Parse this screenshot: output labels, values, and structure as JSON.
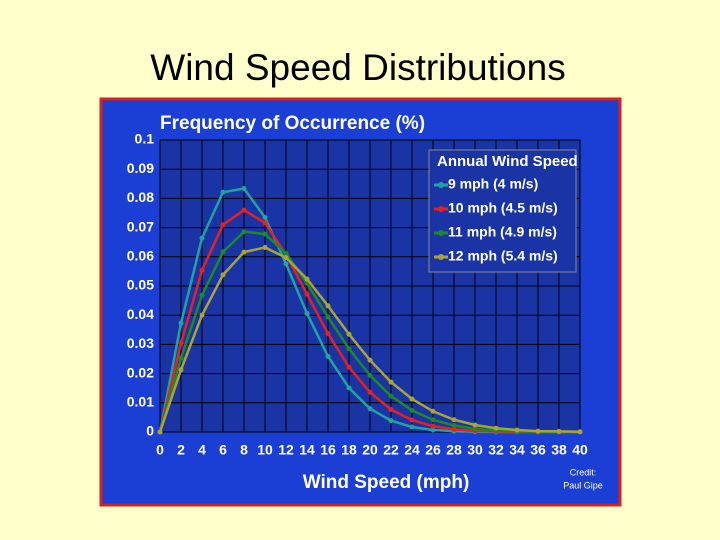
{
  "slide_title": "Wind Speed Distributions",
  "chart_data": {
    "type": "line",
    "title": "Frequency of Occurrence (%)",
    "x_label": "Wind Speed (mph)",
    "legend_title": "Annual Wind Speed",
    "legend_position": "upper right",
    "credit": [
      "Credit:",
      "Paul Gipe"
    ],
    "grid": true,
    "x": [
      0,
      2,
      4,
      6,
      8,
      10,
      12,
      14,
      16,
      18,
      20,
      22,
      24,
      26,
      28,
      30,
      32,
      34,
      36,
      38,
      40
    ],
    "series": [
      {
        "name": "9 mph (4 m/s)",
        "color": "#1fa3a3",
        "values": [
          0,
          0.0373,
          0.0664,
          0.0821,
          0.0834,
          0.0735,
          0.0576,
          0.0406,
          0.0259,
          0.0151,
          0.008,
          0.0039,
          0.0017,
          0.0007,
          0.0003,
          0.0001,
          0,
          0,
          0,
          0,
          0
        ]
      },
      {
        "name": "10 mph (4.5 m/s)",
        "color": "#e8201e",
        "values": [
          0,
          0.0304,
          0.0554,
          0.071,
          0.076,
          0.0716,
          0.0608,
          0.0472,
          0.0337,
          0.0222,
          0.0136,
          0.0077,
          0.0041,
          0.002,
          0.0009,
          0.0004,
          0.0002,
          0.0001,
          0,
          0,
          0
        ]
      },
      {
        "name": "11 mph (4.9 m/s)",
        "color": "#1f8a24",
        "values": [
          0,
          0.0253,
          0.0468,
          0.0617,
          0.0686,
          0.0678,
          0.0612,
          0.0509,
          0.0394,
          0.0285,
          0.0194,
          0.0123,
          0.0074,
          0.0042,
          0.0022,
          0.0011,
          0.0005,
          0.0002,
          0.0001,
          0,
          0
        ]
      },
      {
        "name": "12 mph (5.4 m/s)",
        "color": "#a9a535",
        "values": [
          0,
          0.0213,
          0.04,
          0.0538,
          0.0616,
          0.0632,
          0.0597,
          0.0524,
          0.0432,
          0.0335,
          0.0246,
          0.0171,
          0.0113,
          0.0071,
          0.0042,
          0.0024,
          0.0013,
          0.0007,
          0.0003,
          0.0002,
          0.0001
        ]
      }
    ],
    "xlim": [
      0,
      40
    ],
    "xticks": [
      0,
      2,
      4,
      6,
      8,
      10,
      12,
      14,
      16,
      18,
      20,
      22,
      24,
      26,
      28,
      30,
      32,
      34,
      36,
      38,
      40
    ],
    "ylim": [
      0,
      0.1
    ],
    "yticks": [
      0,
      0.01,
      0.02,
      0.03,
      0.04,
      0.05,
      0.06,
      0.07,
      0.08,
      0.09,
      0.1
    ]
  }
}
